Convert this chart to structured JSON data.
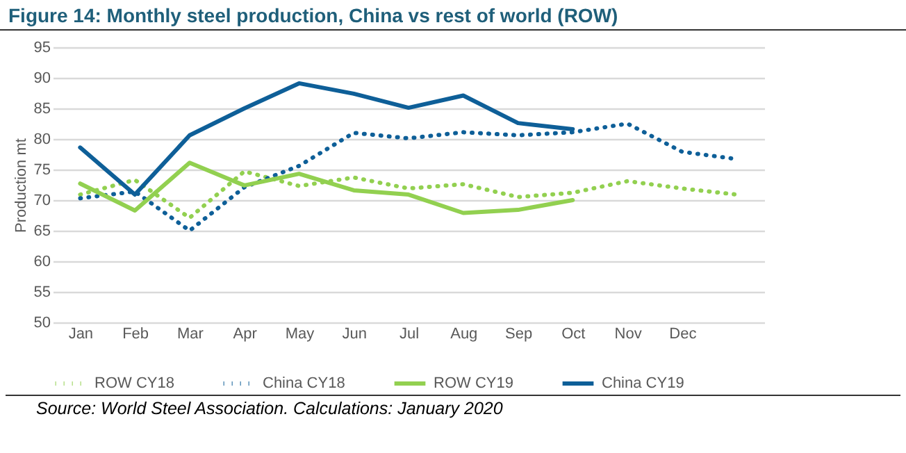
{
  "chart_data": {
    "type": "line",
    "title": "Figure 14: Monthly steel production, China vs rest of world (ROW)",
    "ylabel": "Production mt",
    "categories": [
      "Jan",
      "Feb",
      "Mar",
      "Apr",
      "May",
      "Jun",
      "Jul",
      "Aug",
      "Sep",
      "Oct",
      "Nov",
      "Dec",
      null
    ],
    "series": [
      {
        "name": "ROW CY18",
        "color": "#92d050",
        "line_style": "dotted",
        "values": [
          70.9,
          73.3,
          67.1,
          74.7,
          72.3,
          73.7,
          71.9,
          72.6,
          70.5,
          71.2,
          73.1,
          71.9,
          70.9
        ]
      },
      {
        "name": "China CY18",
        "color": "#0e5f98",
        "line_style": "dotted",
        "values": [
          70.3,
          71.4,
          65,
          72.1,
          75.6,
          81,
          80.1,
          81.1,
          80.6,
          81.1,
          82.5,
          77.9,
          76.7
        ]
      },
      {
        "name": "ROW CY19",
        "color": "#92d050",
        "line_style": "solid",
        "values": [
          72.7,
          68.3,
          76.1,
          72.4,
          74.3,
          71.6,
          70.9,
          67.9,
          68.4,
          70,
          null,
          null,
          null
        ]
      },
      {
        "name": "China CY19",
        "color": "#0e5f98",
        "line_style": "solid",
        "values": [
          78.6,
          70.9,
          80.6,
          85,
          89.1,
          87.4,
          85.1,
          87.1,
          82.6,
          81.6,
          null,
          null,
          null
        ]
      }
    ],
    "ylim": [
      50,
      95
    ],
    "yticks": [
      50,
      55,
      60,
      65,
      70,
      75,
      80,
      85,
      90,
      95
    ],
    "grid": "y",
    "legend": "bottom",
    "marker": "none",
    "annotations": [
      "Source: World Steel Association. Calculations: January 2020"
    ]
  }
}
